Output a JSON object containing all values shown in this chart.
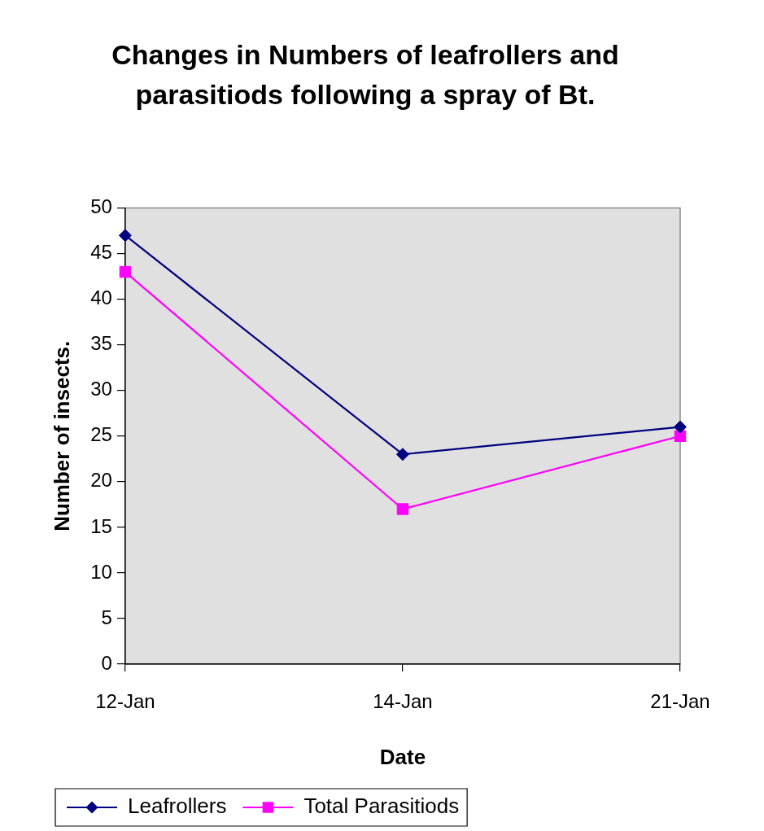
{
  "chart_data": {
    "type": "line",
    "title": "Changes in Numbers of leafrollers and parasitiods following a spray of Bt.",
    "xlabel": "Date",
    "ylabel": "Number of insects.",
    "categories": [
      "12-Jan",
      "14-Jan",
      "21-Jan"
    ],
    "series": [
      {
        "name": "Leafrollers",
        "color": "#000080",
        "marker": "diamond",
        "values": [
          47,
          23,
          26
        ]
      },
      {
        "name": "Total Parasitiods",
        "color": "#ff00ff",
        "marker": "square",
        "values": [
          43,
          17,
          25
        ]
      }
    ],
    "ylim": [
      0,
      50
    ],
    "yticks": [
      0,
      5,
      10,
      15,
      20,
      25,
      30,
      35,
      40,
      45,
      50
    ],
    "legend": "bottom left"
  }
}
